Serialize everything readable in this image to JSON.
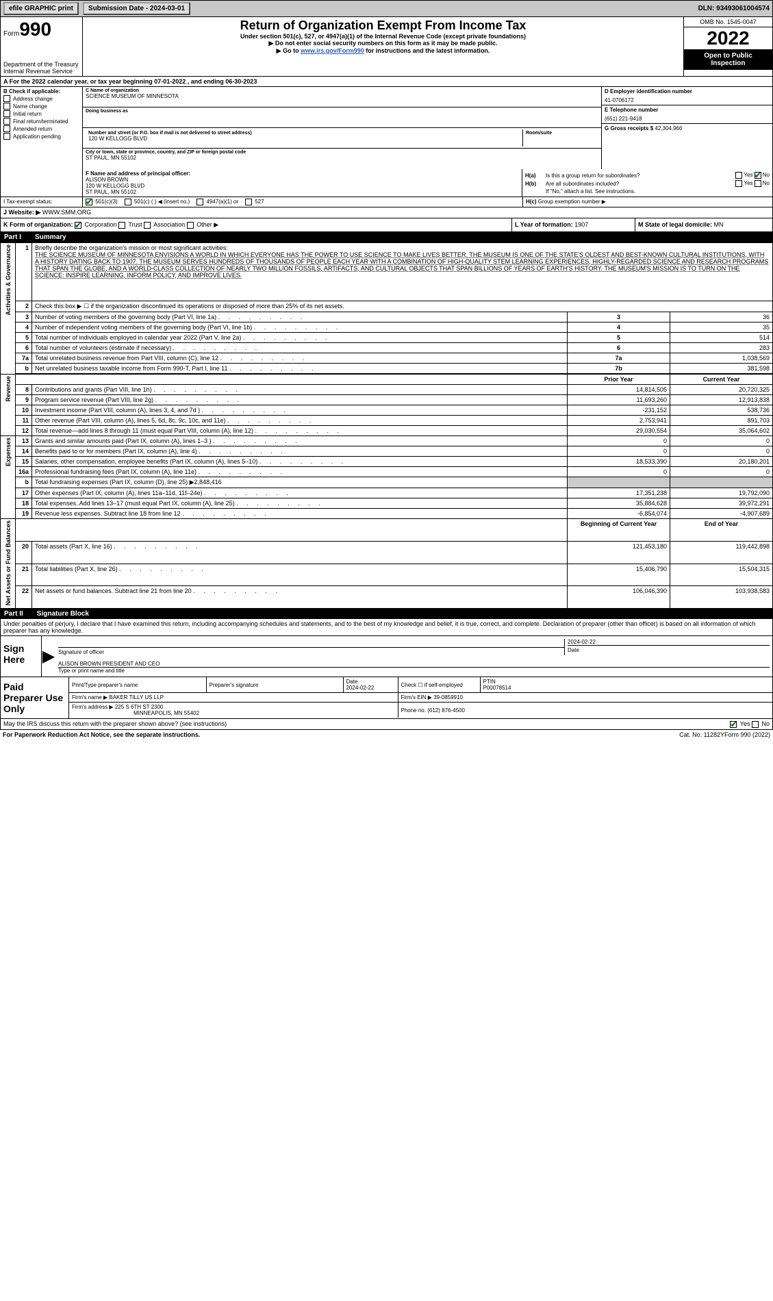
{
  "topbar": {
    "efile_label": "efile GRAPHIC print",
    "submission_btn": "Submission Date - 2024-03-01",
    "dln": "DLN: 93493061004574"
  },
  "header": {
    "form_label": "Form",
    "form_number": "990",
    "dept": "Department of the Treasury",
    "irs": "Internal Revenue Service",
    "title": "Return of Organization Exempt From Income Tax",
    "subtitle": "Under section 501(c), 527, or 4947(a)(1) of the Internal Revenue Code (except private foundations)",
    "line1": "▶ Do not enter social security numbers on this form as it may be made public.",
    "line2_pre": "▶ Go to ",
    "line2_link": "www.irs.gov/Form990",
    "line2_post": " for instructions and the latest information.",
    "omb": "OMB No. 1545-0047",
    "year": "2022",
    "open": "Open to Public Inspection"
  },
  "period": {
    "text": "A For the 2022 calendar year, or tax year beginning 07-01-2022   , and ending 06-30-2023"
  },
  "section_b": {
    "label": "B Check if applicable:",
    "items": [
      "Address change",
      "Name change",
      "Initial return",
      "Final return/terminated",
      "Amended return",
      "Application pending"
    ]
  },
  "section_c": {
    "name_label": "C Name of organization",
    "name": "SCIENCE MUSEUM OF MINNESOTA",
    "dba_label": "Doing business as",
    "dba": "",
    "addr_label": "Number and street (or P.O. box if mail is not delivered to street address)",
    "suite_label": "Room/suite",
    "addr": "120 W KELLOGG BLVD",
    "city_label": "City or town, state or province, country, and ZIP or foreign postal code",
    "city": "ST PAUL, MN  55102"
  },
  "section_d": {
    "label": "D Employer identification number",
    "value": "41-0706172"
  },
  "section_e": {
    "label": "E Telephone number",
    "value": "(651) 221-9418"
  },
  "section_g": {
    "label": "G Gross receipts $",
    "value": "42,304,966"
  },
  "section_f": {
    "label": "F  Name and address of principal officer:",
    "name": "ALISON BROWN",
    "addr1": "120 W KELLOGG BLVD",
    "addr2": "ST PAUL, MN  55102"
  },
  "section_h": {
    "ha_label": "H(a)",
    "ha_text": "Is this a group return for subordinates?",
    "ha_no_checked": true,
    "hb_label": "H(b)",
    "hb_text": "Are all subordinates included?",
    "hb_note": "If \"No,\" attach a list. See instructions.",
    "hc_label": "H(c)",
    "hc_text": "Group exemption number ▶"
  },
  "status": {
    "label": "I    Tax-exempt status:",
    "opt1": "501(c)(3)",
    "opt2": "501(c) (   ) ◀ (insert no.)",
    "opt3": "4947(a)(1) or",
    "opt4": "527",
    "opt1_checked": true
  },
  "website": {
    "label": "J   Website: ▶",
    "value": "WWW.SMM.ORG"
  },
  "section_k": {
    "label": "K Form of organization:",
    "corp_checked": true
  },
  "section_l": {
    "label": "L Year of formation:",
    "value": "1907"
  },
  "section_m": {
    "label": "M State of legal domicile:",
    "value": "MN"
  },
  "part1": {
    "header": "Part I",
    "title": "Summary",
    "line1_label": "Briefly describe the organization's mission or most significant activities:",
    "mission": "THE SCIENCE MUSEUM OF MINNESOTA ENVISIONS A WORLD IN WHICH EVERYONE HAS THE POWER TO USE SCIENCE TO MAKE LIVES BETTER. THE MUSEUM IS ONE OF THE STATE'S OLDEST AND BEST-KNOWN CULTURAL INSTITUTIONS, WITH A HISTORY DATING BACK TO 1907. THE MUSEUM SERVES HUNDREDS OF THOUSANDS OF PEOPLE EACH YEAR WITH A COMBINATION OF HIGH-QUALITY STEM LEARNING EXPERIENCES, HIGHLY-REGARDED SCIENCE AND RESEARCH PROGRAMS THAT SPAN THE GLOBE, AND A WORLD-CLASS COLLECTION OF NEARLY TWO MILLION FOSSILS, ARTIFACTS, AND CULTURAL OBJECTS THAT SPAN BILLIONS OF YEARS OF EARTH'S HISTORY. THE MUSEUM'S MISSION IS TO TURN ON THE SCIENCE: INSPIRE LEARNING, INFORM POLICY, AND IMPROVE LIVES.",
    "line2": "Check this box ▶ ☐ if the organization discontinued its operations or disposed of more than 25% of its net assets.",
    "side_activities": "Activities & Governance",
    "side_revenue": "Revenue",
    "side_expenses": "Expenses",
    "side_netassets": "Net Assets or Fund Balances",
    "lines_single": [
      {
        "n": "3",
        "d": "Number of voting members of the governing body (Part VI, line 1a)",
        "k": "3",
        "v": "36"
      },
      {
        "n": "4",
        "d": "Number of independent voting members of the governing body (Part VI, line 1b)",
        "k": "4",
        "v": "35"
      },
      {
        "n": "5",
        "d": "Total number of individuals employed in calendar year 2022 (Part V, line 2a)",
        "k": "5",
        "v": "514"
      },
      {
        "n": "6",
        "d": "Total number of volunteers (estimate if necessary)",
        "k": "6",
        "v": "283"
      },
      {
        "n": "7a",
        "d": "Total unrelated business revenue from Part VIII, column (C), line 12",
        "k": "7a",
        "v": "1,038,569"
      },
      {
        "n": "b",
        "d": "Net unrelated business taxable income from Form 990-T, Part I, line 11",
        "k": "7b",
        "v": "381,598"
      }
    ],
    "col_prior": "Prior Year",
    "col_curr": "Current Year",
    "revenue_lines": [
      {
        "n": "8",
        "d": "Contributions and grants (Part VIII, line 1h)",
        "p": "14,814,505",
        "c": "20,720,325"
      },
      {
        "n": "9",
        "d": "Program service revenue (Part VIII, line 2g)",
        "p": "11,693,260",
        "c": "12,913,838"
      },
      {
        "n": "10",
        "d": "Investment income (Part VIII, column (A), lines 3, 4, and 7d )",
        "p": "-231,152",
        "c": "538,736"
      },
      {
        "n": "11",
        "d": "Other revenue (Part VIII, column (A), lines 5, 6d, 8c, 9c, 10c, and 11e)",
        "p": "2,753,941",
        "c": "891,703"
      },
      {
        "n": "12",
        "d": "Total revenue—add lines 8 through 11 (must equal Part VIII, column (A), line 12)",
        "p": "29,030,554",
        "c": "35,064,602"
      }
    ],
    "expense_lines": [
      {
        "n": "13",
        "d": "Grants and similar amounts paid (Part IX, column (A), lines 1–3 )",
        "p": "0",
        "c": "0"
      },
      {
        "n": "14",
        "d": "Benefits paid to or for members (Part IX, column (A), line 4)",
        "p": "0",
        "c": "0"
      },
      {
        "n": "15",
        "d": "Salaries, other compensation, employee benefits (Part IX, column (A), lines 5–10)",
        "p": "18,533,390",
        "c": "20,180,201"
      },
      {
        "n": "16a",
        "d": "Professional fundraising fees (Part IX, column (A), line 11e)",
        "p": "0",
        "c": "0"
      }
    ],
    "line16b": {
      "n": "b",
      "d": "Total fundraising expenses (Part IX, column (D), line 25) ▶2,848,416"
    },
    "expense_lines2": [
      {
        "n": "17",
        "d": "Other expenses (Part IX, column (A), lines 11a–11d, 11f–24e)",
        "p": "17,351,238",
        "c": "19,792,090"
      },
      {
        "n": "18",
        "d": "Total expenses. Add lines 13–17 (must equal Part IX, column (A), line 25)",
        "p": "35,884,628",
        "c": "39,972,291"
      },
      {
        "n": "19",
        "d": "Revenue less expenses. Subtract line 18 from line 12",
        "p": "-6,854,074",
        "c": "-4,907,689"
      }
    ],
    "col_begin": "Beginning of Current Year",
    "col_end": "End of Year",
    "asset_lines": [
      {
        "n": "20",
        "d": "Total assets (Part X, line 16)",
        "p": "121,453,180",
        "c": "119,442,898"
      },
      {
        "n": "21",
        "d": "Total liabilities (Part X, line 26)",
        "p": "15,406,790",
        "c": "15,504,315"
      },
      {
        "n": "22",
        "d": "Net assets or fund balances. Subtract line 21 from line 20",
        "p": "106,046,390",
        "c": "103,938,583"
      }
    ]
  },
  "part2": {
    "header": "Part II",
    "title": "Signature Block",
    "intro": "Under penalties of perjury, I declare that I have examined this return, including accompanying schedules and statements, and to the best of my knowledge and belief, it is true, correct, and complete. Declaration of preparer (other than officer) is based on all information of which preparer has any knowledge.",
    "sign_here": "Sign Here",
    "sig_officer": "Signature of officer",
    "sig_date_label": "Date",
    "sig_date": "2024-02-22",
    "name_title": "ALISON BROWN  PRESIDENT AND CEO",
    "name_title_label": "Type or print name and title",
    "paid_prep": "Paid Preparer Use Only",
    "prep_name_label": "Print/Type preparer's name",
    "prep_name": "",
    "prep_sig_label": "Preparer's signature",
    "prep_date_label": "Date",
    "prep_date": "2024-02-22",
    "self_emp": "Check ☐ if self-employed",
    "ptin_label": "PTIN",
    "ptin": "P00078514",
    "firm_name_label": "Firm's name    ▶",
    "firm_name": "BAKER TILLY US LLP",
    "firm_ein_label": "Firm's EIN ▶",
    "firm_ein": "39-0859910",
    "firm_addr_label": "Firm's address ▶",
    "firm_addr": "225 S 6TH ST 2300",
    "firm_city": "MINNEAPOLIS, MN  55402",
    "phone_label": "Phone no.",
    "phone": "(612) 876-4500",
    "discuss": "May the IRS discuss this return with the preparer shown above? (see instructions)",
    "discuss_yes_checked": true
  },
  "footer": {
    "left": "For Paperwork Reduction Act Notice, see the separate instructions.",
    "center": "Cat. No. 11282Y",
    "right": "Form 990 (2022)"
  },
  "labels": {
    "yes": "Yes",
    "no": "No",
    "corporation": "Corporation",
    "trust": "Trust",
    "association": "Association",
    "other": "Other ▶"
  },
  "colors": {
    "topbar_bg": "#c8c8c8",
    "black": "#000000",
    "link": "#2a5db0",
    "check": "#1a7a1a",
    "shaded": "#cccccc"
  }
}
